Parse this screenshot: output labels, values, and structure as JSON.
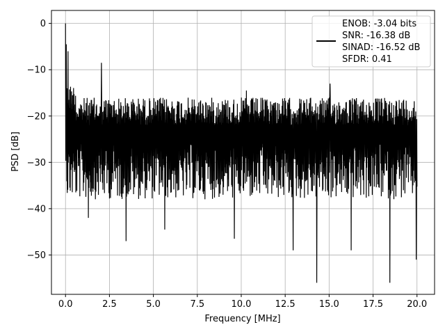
{
  "chart_data": {
    "type": "line",
    "title": "",
    "xlabel": "Frequency [MHz]",
    "ylabel": "PSD [dB]",
    "xlim": [
      -0.8,
      21.0
    ],
    "ylim": [
      -58.5,
      2.8
    ],
    "xticks": [
      0.0,
      2.5,
      5.0,
      7.5,
      10.0,
      12.5,
      15.0,
      17.5,
      20.0
    ],
    "xtick_labels": [
      "0.0",
      "2.5",
      "5.0",
      "7.5",
      "10.0",
      "12.5",
      "15.0",
      "17.5",
      "20.0"
    ],
    "yticks": [
      0,
      -10,
      -20,
      -30,
      -40,
      -50
    ],
    "ytick_labels": [
      "0",
      "−10",
      "−20",
      "−30",
      "−40",
      "−50"
    ],
    "grid": true,
    "legend_position": "top-right",
    "line_color": "#000000",
    "legend": {
      "lines": [
        "ENOB: -3.04 bits",
        "SNR: -16.38 dB",
        "SINAD: -16.52 dB",
        "SFDR: 0.41"
      ]
    },
    "series": [
      {
        "x_range": [
          0.0,
          20.0
        ],
        "noise_floor_db": -23,
        "peaks": [
          {
            "x": 0.0,
            "y": 0.0
          },
          {
            "x": 0.05,
            "y": -4.5
          },
          {
            "x": 0.15,
            "y": -6.0
          },
          {
            "x": 2.05,
            "y": -8.5
          },
          {
            "x": 15.05,
            "y": -13.0
          },
          {
            "x": 10.3,
            "y": -14.5
          }
        ],
        "troughs": [
          {
            "x": 1.3,
            "y": -42.0
          },
          {
            "x": 3.45,
            "y": -47.0
          },
          {
            "x": 5.65,
            "y": -44.5
          },
          {
            "x": 9.6,
            "y": -46.5
          },
          {
            "x": 12.95,
            "y": -49.0
          },
          {
            "x": 14.3,
            "y": -56.0
          },
          {
            "x": 16.25,
            "y": -49.0
          },
          {
            "x": 18.45,
            "y": -56.0
          },
          {
            "x": 19.95,
            "y": -51.0
          }
        ]
      }
    ]
  }
}
